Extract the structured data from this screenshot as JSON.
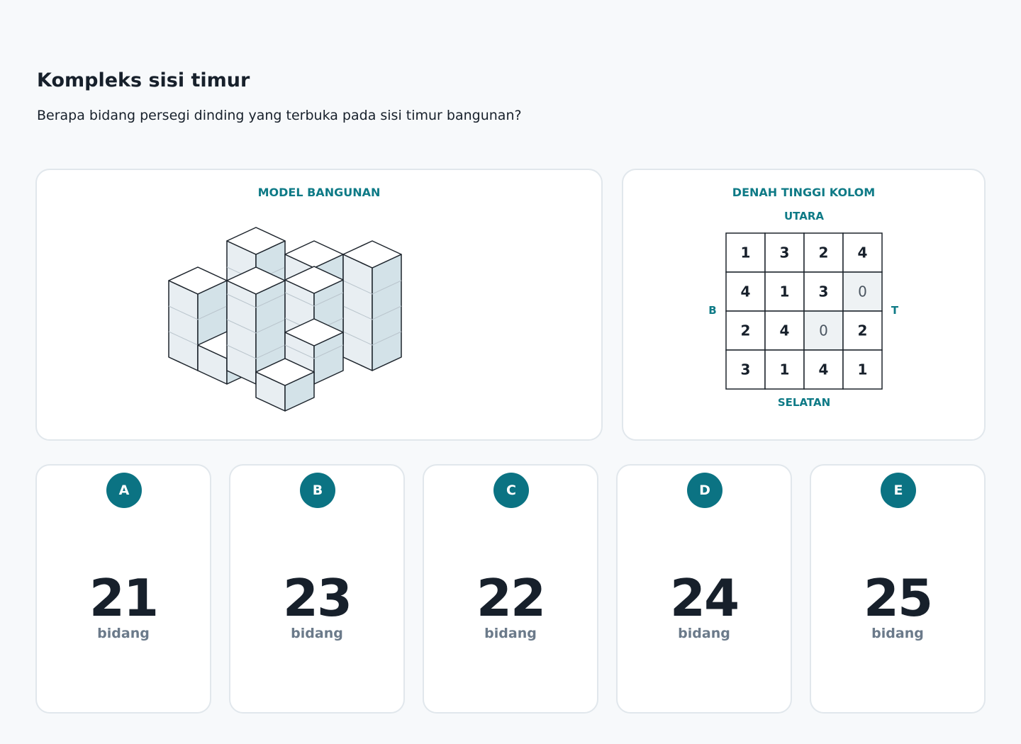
{
  "header": {
    "title": "Kompleks sisi timur",
    "question": "Berapa bidang persegi dinding yang terbuka pada sisi timur bangunan?"
  },
  "model": {
    "label": "MODEL BANGUNAN"
  },
  "plan": {
    "label": "DENAH TINGGI KOLOM",
    "north": "UTARA",
    "south": "SELATAN",
    "west": "B",
    "east": "T",
    "rows": [
      [
        "1",
        "3",
        "2",
        "4"
      ],
      [
        "4",
        "1",
        "3",
        "0"
      ],
      [
        "2",
        "4",
        "0",
        "2"
      ],
      [
        "3",
        "1",
        "4",
        "1"
      ]
    ]
  },
  "options": [
    {
      "letter": "A",
      "value": "21",
      "unit": "bidang"
    },
    {
      "letter": "B",
      "value": "23",
      "unit": "bidang"
    },
    {
      "letter": "C",
      "value": "22",
      "unit": "bidang"
    },
    {
      "letter": "D",
      "value": "24",
      "unit": "bidang"
    },
    {
      "letter": "E",
      "value": "25",
      "unit": "bidang"
    }
  ]
}
